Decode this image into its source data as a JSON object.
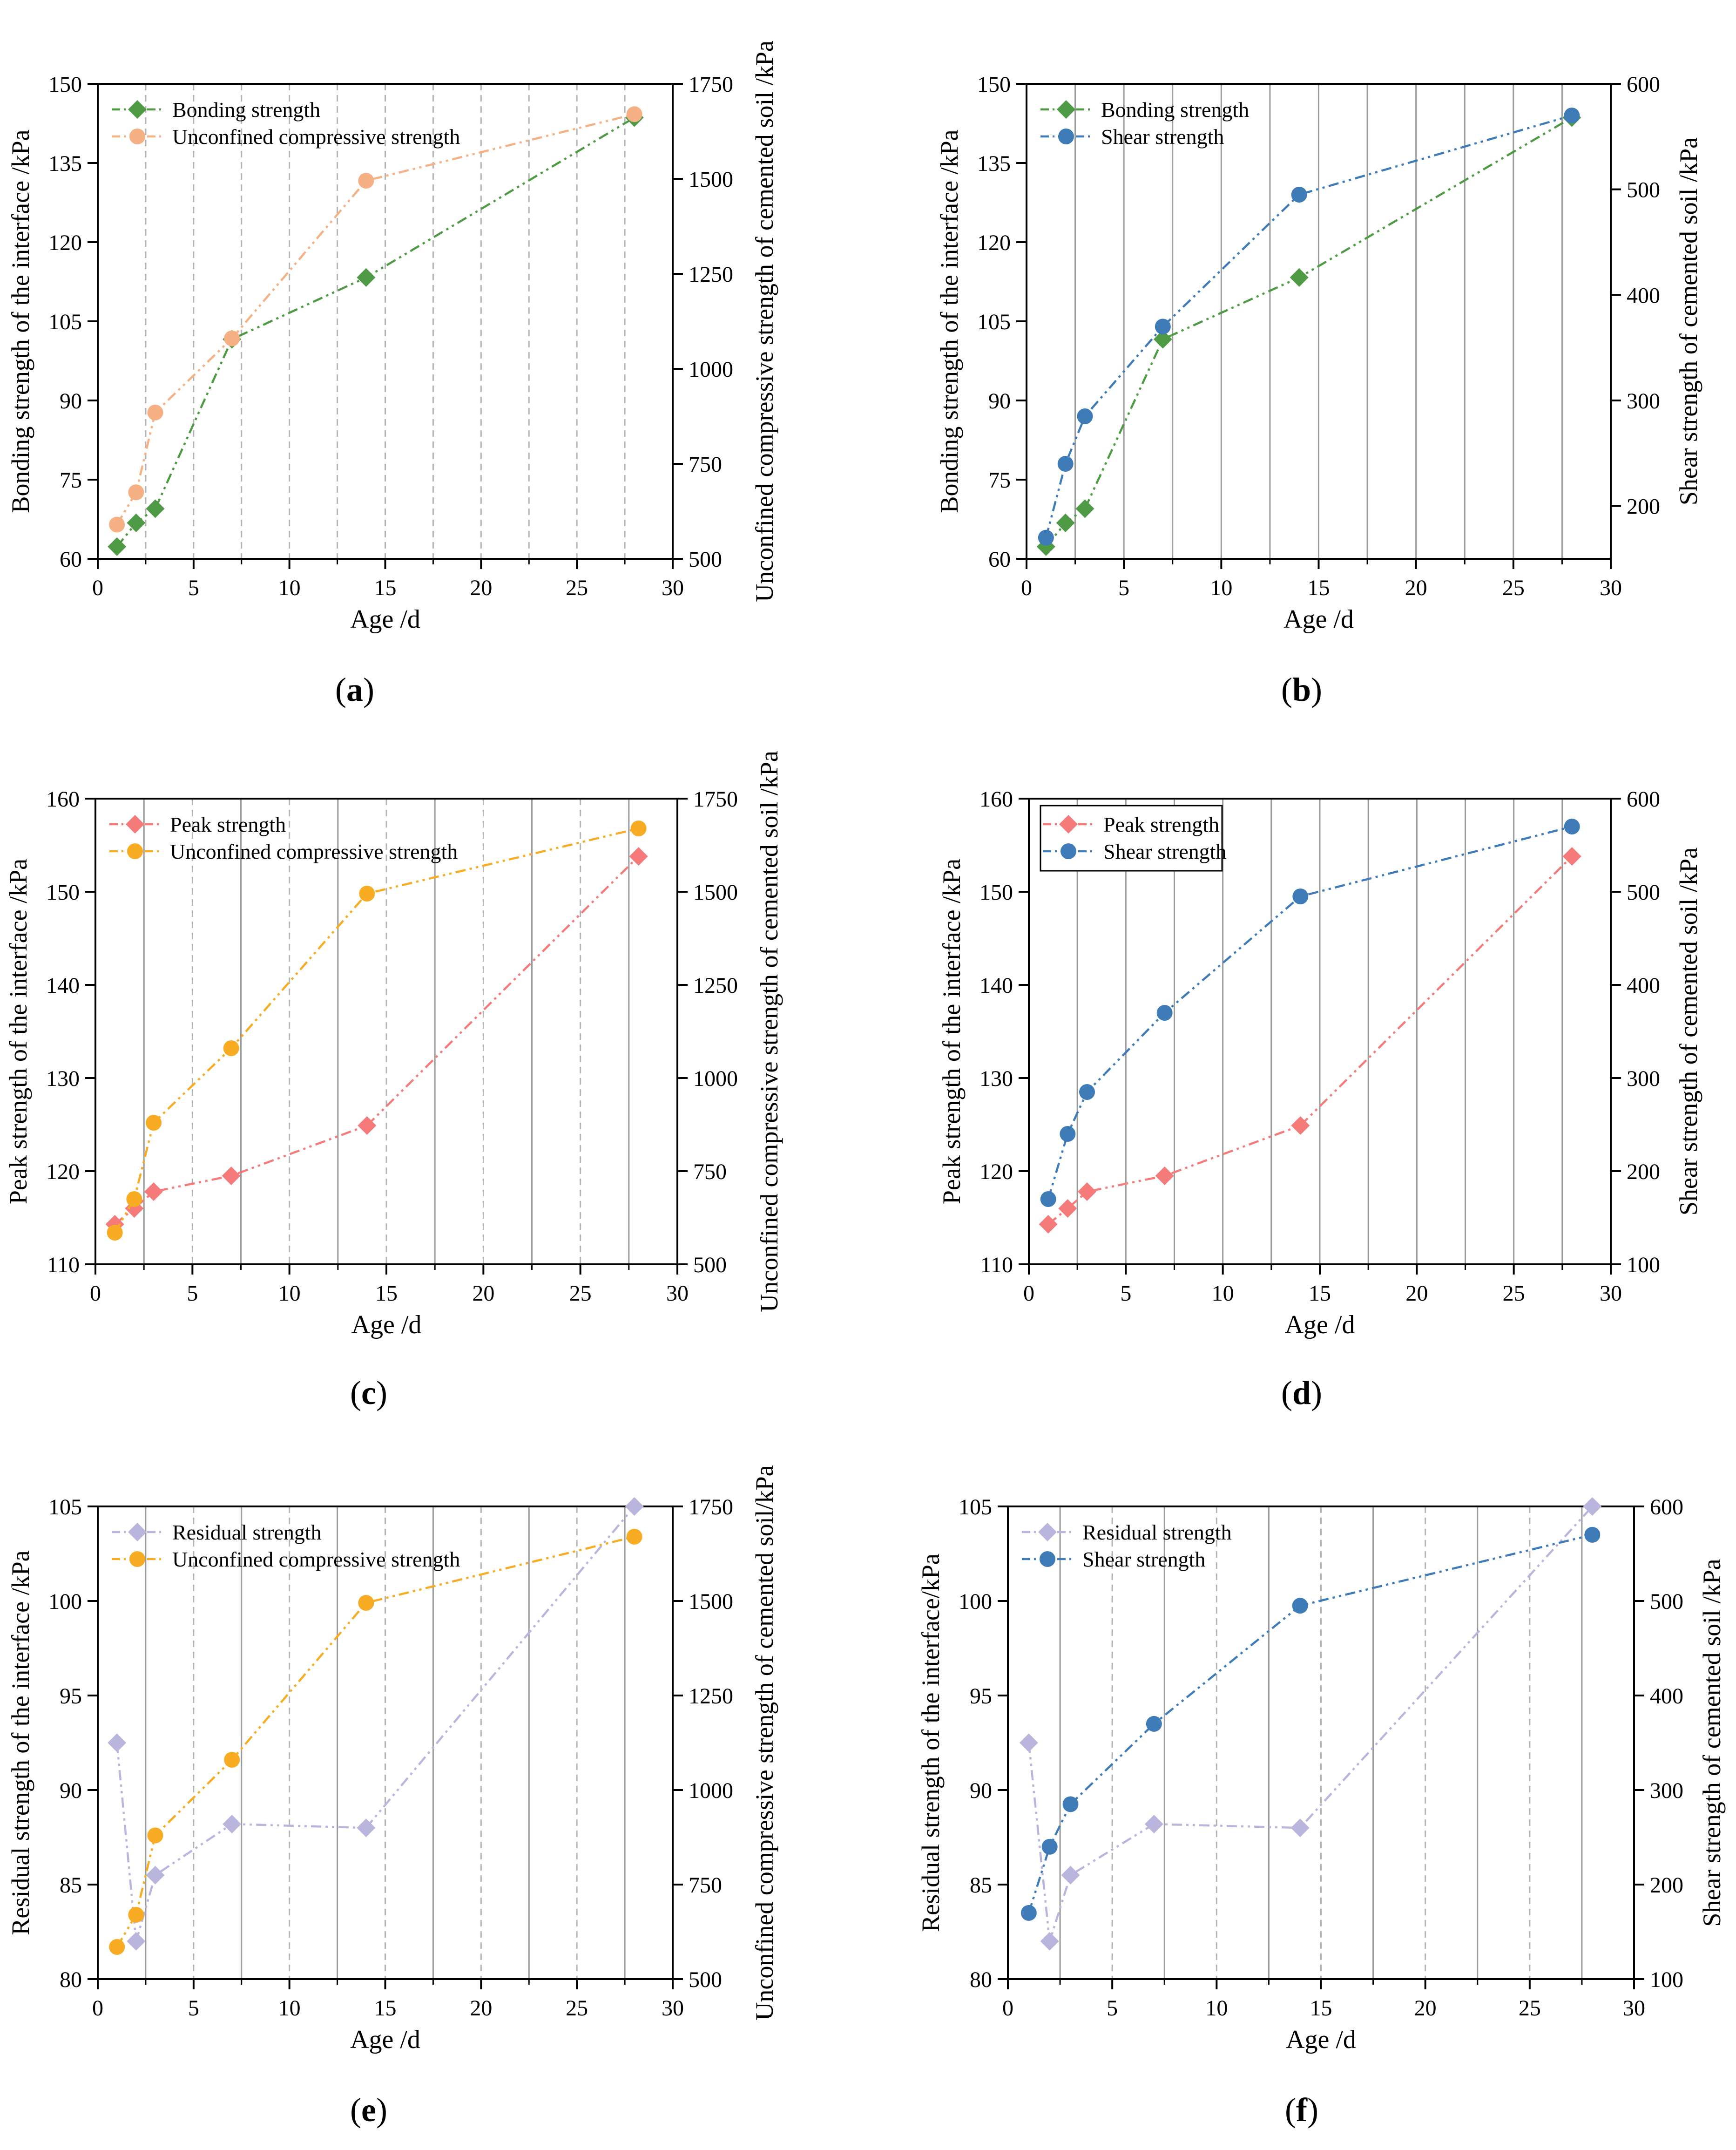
{
  "figure": {
    "x_axis_label": "Age /d"
  },
  "colors": {
    "green": "#4f9a44",
    "peach": "#f5b183",
    "blue": "#3f7cb7",
    "orange": "#f7ac23",
    "pink": "#f57a7a",
    "lavender": "#b9b5dd",
    "axis": "#000000",
    "grid_solid": "#9a9a9a",
    "grid_dashed": "#b4b4b4"
  },
  "chart_data": [
    {
      "id": "a",
      "panel_label": "a",
      "type": "line",
      "xlabel": "Age /d",
      "xlim": [
        0,
        30
      ],
      "xticks": [
        0,
        5,
        10,
        15,
        20,
        25,
        30
      ],
      "left_axis": {
        "label": "Bonding strength of the interface /kPa",
        "ylim": [
          60,
          150
        ],
        "ticks": [
          60,
          75,
          90,
          105,
          120,
          135,
          150
        ]
      },
      "right_axis": {
        "label": "Unconfined compressive strength of cemented soil /kPa",
        "ylim": [
          500,
          1750
        ],
        "ticks": [
          500,
          750,
          1000,
          1250,
          1500,
          1750
        ]
      },
      "grid": "vertical dashed",
      "legend": "top-left",
      "series": [
        {
          "name": "Bonding strength",
          "axis": "left",
          "marker": "diamond",
          "color": "#4f9a44",
          "x": [
            1,
            2,
            3,
            7,
            14,
            28
          ],
          "values": [
            62.3,
            66.8,
            69.5,
            101.6,
            113.3,
            143.6
          ]
        },
        {
          "name": "Unconfined compressive strength",
          "axis": "right",
          "marker": "circle",
          "color": "#f5b183",
          "x": [
            1,
            2,
            3,
            7,
            14,
            28
          ],
          "values": [
            590,
            675,
            885,
            1080,
            1495,
            1670
          ]
        }
      ]
    },
    {
      "id": "b",
      "panel_label": "b",
      "type": "line",
      "xlabel": "Age /d",
      "xlim": [
        0,
        30
      ],
      "xticks": [
        0,
        5,
        10,
        15,
        20,
        25,
        30
      ],
      "left_axis": {
        "label": "Bonding strength of the interface /kPa",
        "ylim": [
          60,
          150
        ],
        "ticks": [
          60,
          75,
          90,
          105,
          120,
          135,
          150
        ]
      },
      "right_axis": {
        "label": "Shear strength of cemented soil /kPa",
        "ylim": [
          150,
          600
        ],
        "ticks": [
          200,
          300,
          400,
          500,
          600
        ]
      },
      "grid": "vertical solid",
      "legend": "top-left",
      "series": [
        {
          "name": "Bonding strength",
          "axis": "left",
          "marker": "diamond",
          "color": "#4f9a44",
          "x": [
            1,
            2,
            3,
            7,
            14,
            28
          ],
          "values": [
            62.3,
            66.8,
            69.5,
            101.6,
            113.3,
            143.6
          ]
        },
        {
          "name": "Shear strength",
          "axis": "right",
          "marker": "circle",
          "color": "#3f7cb7",
          "x": [
            1,
            2,
            3,
            7,
            14,
            28
          ],
          "values": [
            170,
            240,
            285,
            370,
            495,
            570
          ]
        }
      ]
    },
    {
      "id": "c",
      "panel_label": "c",
      "type": "line",
      "xlabel": "Age /d",
      "xlim": [
        0,
        30
      ],
      "xticks": [
        0,
        5,
        10,
        15,
        20,
        25,
        30
      ],
      "left_axis": {
        "label": "Peak strength of the interface /kPa",
        "ylim": [
          110,
          160
        ],
        "ticks": [
          110,
          120,
          130,
          140,
          150,
          160
        ]
      },
      "right_axis": {
        "label": "Unconfined compressive strength of cemented soil /kPa",
        "ylim": [
          500,
          1750
        ],
        "ticks": [
          500,
          750,
          1000,
          1250,
          1500,
          1750
        ]
      },
      "grid": "vertical mixed",
      "legend": "top-left",
      "series": [
        {
          "name": "Peak strength",
          "axis": "left",
          "marker": "diamond",
          "color": "#f57a7a",
          "x": [
            1,
            2,
            3,
            7,
            14,
            28
          ],
          "values": [
            114.3,
            116.0,
            117.8,
            119.5,
            124.9,
            153.8
          ]
        },
        {
          "name": "Unconfined compressive strength",
          "axis": "right",
          "marker": "circle",
          "color": "#f7ac23",
          "x": [
            1,
            2,
            3,
            7,
            14,
            28
          ],
          "values": [
            585,
            675,
            880,
            1080,
            1495,
            1670
          ]
        }
      ]
    },
    {
      "id": "d",
      "panel_label": "d",
      "type": "line",
      "xlabel": "Age /d",
      "xlim": [
        0,
        30
      ],
      "xticks": [
        0,
        5,
        10,
        15,
        20,
        25,
        30
      ],
      "left_axis": {
        "label": "Peak strength of the interface /kPa",
        "ylim": [
          110,
          160
        ],
        "ticks": [
          110,
          120,
          130,
          140,
          150,
          160
        ]
      },
      "right_axis": {
        "label": "Shear strength of cemented soil /kPa",
        "ylim": [
          100,
          600
        ],
        "ticks": [
          100,
          200,
          300,
          400,
          500,
          600
        ]
      },
      "grid": "vertical solid",
      "legend": "top-left boxed",
      "series": [
        {
          "name": "Peak strength",
          "axis": "left",
          "marker": "diamond",
          "color": "#f57a7a",
          "x": [
            1,
            2,
            3,
            7,
            14,
            28
          ],
          "values": [
            114.3,
            116.0,
            117.8,
            119.5,
            124.9,
            153.8
          ]
        },
        {
          "name": "Shear strength",
          "axis": "right",
          "marker": "circle",
          "color": "#3f7cb7",
          "x": [
            1,
            2,
            3,
            7,
            14,
            28
          ],
          "values": [
            170,
            240,
            285,
            370,
            495,
            570
          ]
        }
      ]
    },
    {
      "id": "e",
      "panel_label": "e",
      "type": "line",
      "xlabel": "Age /d",
      "xlim": [
        0,
        30
      ],
      "xticks": [
        0,
        5,
        10,
        15,
        20,
        25,
        30
      ],
      "left_axis": {
        "label": "Residual strength of the interface /kPa",
        "ylim": [
          80,
          105
        ],
        "ticks": [
          80,
          85,
          90,
          95,
          100,
          105
        ]
      },
      "right_axis": {
        "label": "Unconfined compressive strength of cemented soil/kPa",
        "ylim": [
          500,
          1750
        ],
        "ticks": [
          500,
          750,
          1000,
          1250,
          1500,
          1750
        ]
      },
      "grid": "vertical mixed",
      "legend": "top-left",
      "series": [
        {
          "name": "Residual strength",
          "axis": "left",
          "marker": "diamond",
          "color": "#b9b5dd",
          "x": [
            1,
            2,
            3,
            7,
            14,
            28
          ],
          "values": [
            92.5,
            82.0,
            85.5,
            88.2,
            88.0,
            105.0
          ]
        },
        {
          "name": "Unconfined compressive strength",
          "axis": "right",
          "marker": "circle",
          "color": "#f7ac23",
          "x": [
            1,
            2,
            3,
            7,
            14,
            28
          ],
          "values": [
            585,
            670,
            880,
            1080,
            1495,
            1670
          ]
        }
      ]
    },
    {
      "id": "f",
      "panel_label": "f",
      "type": "line",
      "xlabel": "Age /d",
      "xlim": [
        0,
        30
      ],
      "xticks": [
        0,
        5,
        10,
        15,
        20,
        25,
        30
      ],
      "left_axis": {
        "label": "Residual strength of the interface/kPa",
        "ylim": [
          80,
          105
        ],
        "ticks": [
          80,
          85,
          90,
          95,
          100,
          105
        ]
      },
      "right_axis": {
        "label": "Shear strength of cemented soil /kPa",
        "ylim": [
          100,
          600
        ],
        "ticks": [
          100,
          200,
          300,
          400,
          500,
          600
        ]
      },
      "grid": "vertical mixed",
      "legend": "top-left",
      "series": [
        {
          "name": "Residual strength",
          "axis": "left",
          "marker": "diamond",
          "color": "#b9b5dd",
          "x": [
            1,
            2,
            3,
            7,
            14,
            28
          ],
          "values": [
            92.5,
            82.0,
            85.5,
            88.2,
            88.0,
            105.0
          ]
        },
        {
          "name": "Shear strength",
          "axis": "right",
          "marker": "circle",
          "color": "#3f7cb7",
          "x": [
            1,
            2,
            3,
            7,
            14,
            28
          ],
          "values": [
            170,
            240,
            285,
            370,
            495,
            570
          ]
        }
      ]
    }
  ]
}
